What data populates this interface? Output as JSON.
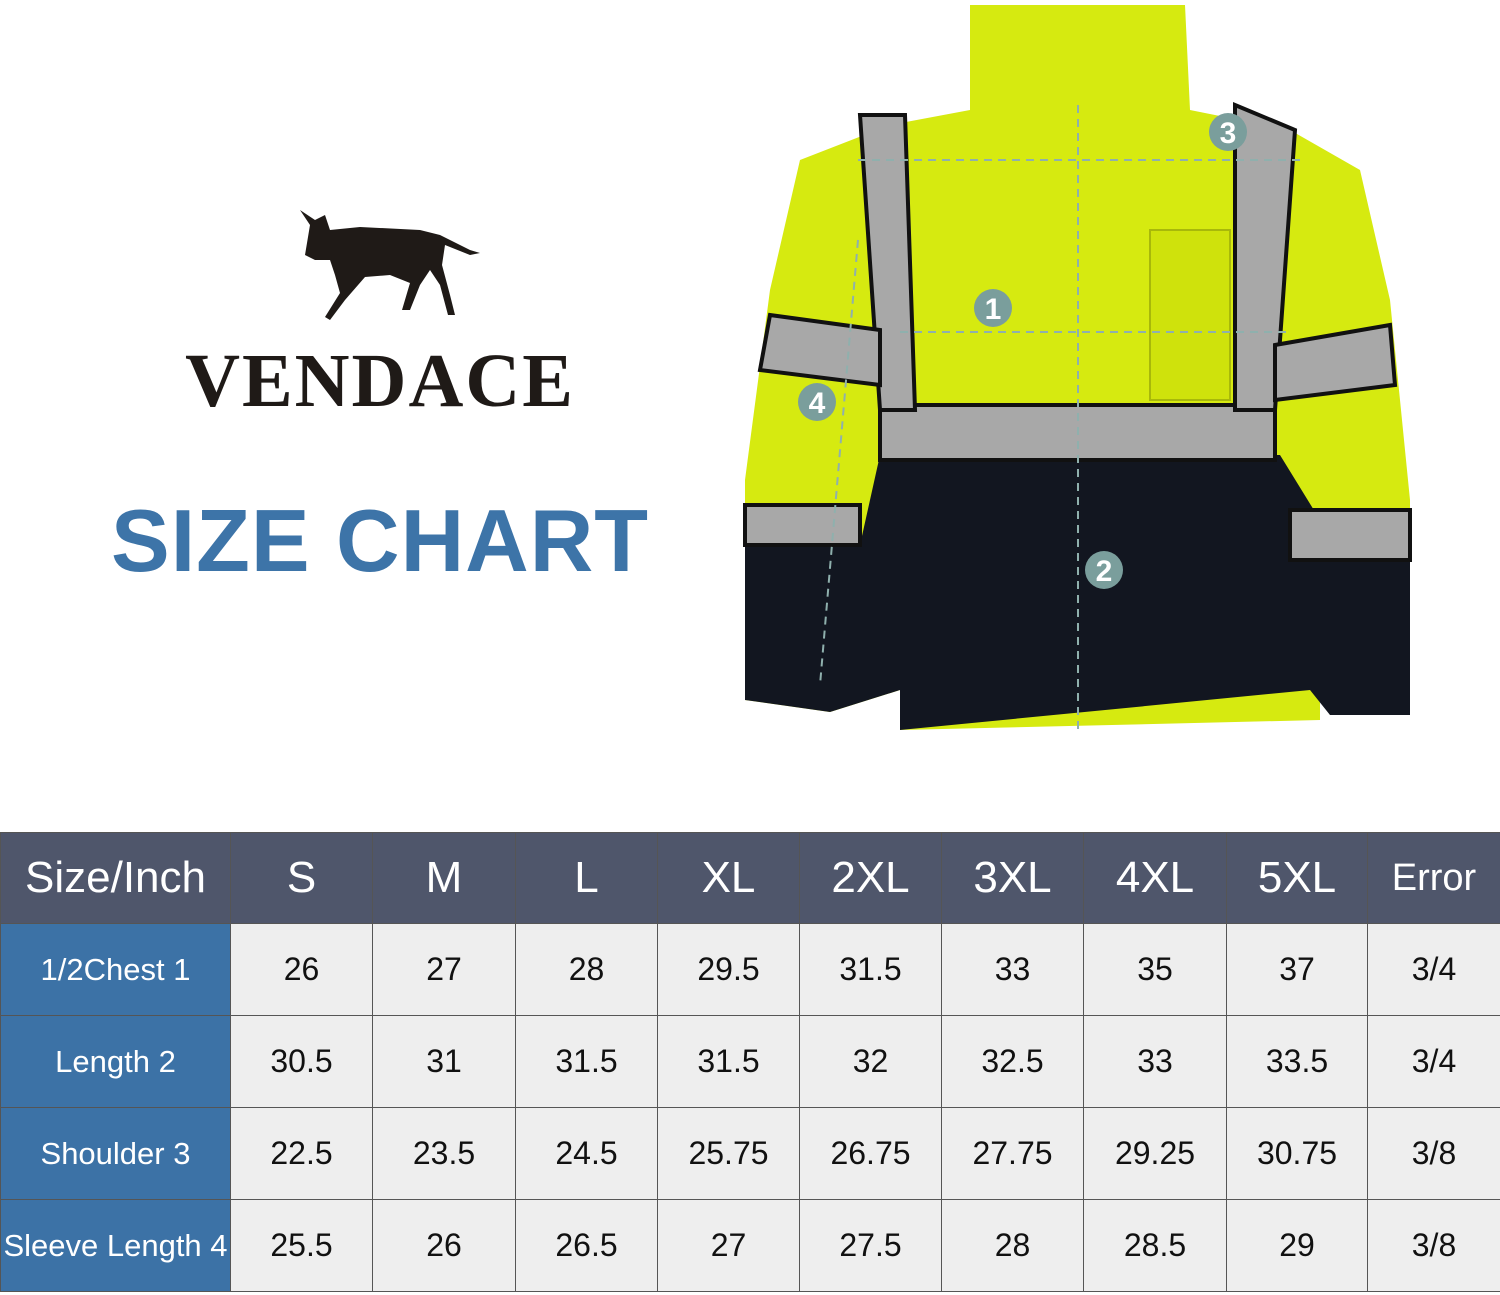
{
  "brand": {
    "name": "VENDACE",
    "logo_icon": "donkey-icon"
  },
  "title": "SIZE CHART",
  "diagram": {
    "markers": [
      "1",
      "2",
      "3",
      "4"
    ],
    "marker_color": "#7a9e9c"
  },
  "colors": {
    "header_bg": "#4f566b",
    "row_header_bg": "#3c72a6",
    "cell_bg": "#eeeeee",
    "title": "#3d74a8"
  },
  "table": {
    "headers": [
      "Size/Inch",
      "S",
      "M",
      "L",
      "XL",
      "2XL",
      "3XL",
      "4XL",
      "5XL",
      "Error"
    ],
    "rows": [
      {
        "label": "1/2Chest  1",
        "values": [
          "26",
          "27",
          "28",
          "29.5",
          "31.5",
          "33",
          "35",
          "37",
          "3/4"
        ]
      },
      {
        "label": "Length  2",
        "values": [
          "30.5",
          "31",
          "31.5",
          "31.5",
          "32",
          "32.5",
          "33",
          "33.5",
          "3/4"
        ]
      },
      {
        "label": "Shoulder 3",
        "values": [
          "22.5",
          "23.5",
          "24.5",
          "25.75",
          "26.75",
          "27.75",
          "29.25",
          "30.75",
          "3/8"
        ]
      },
      {
        "label": "Sleeve Length 4",
        "values": [
          "25.5",
          "26",
          "26.5",
          "27",
          "27.5",
          "28",
          "28.5",
          "29",
          "3/8"
        ]
      }
    ]
  }
}
